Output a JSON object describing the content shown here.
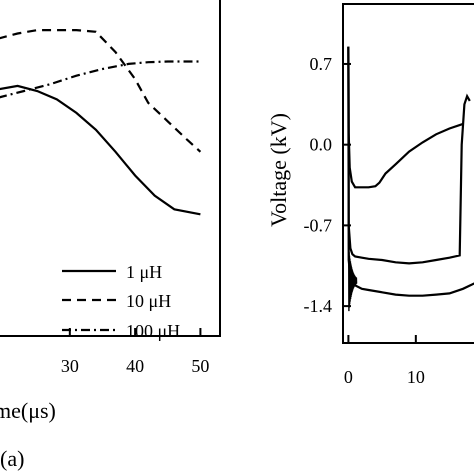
{
  "chart_data": [
    {
      "type": "line",
      "panel_label": "(a)",
      "xlabel": "me(μs)",
      "ylabel": "",
      "x_ticks": [
        "30",
        "40",
        "50"
      ],
      "x_tick_values": [
        30,
        40,
        50
      ],
      "xlim": [
        19,
        53
      ],
      "ylim": [
        0,
        1
      ],
      "y_ticks": [],
      "grid": false,
      "legend_position": "bottom-right",
      "series": [
        {
          "name": "1 μH",
          "style": "solid",
          "color": "#000000",
          "x": [
            19,
            22,
            25,
            28,
            31,
            34,
            37,
            40,
            43,
            46,
            50
          ],
          "y": [
            0.73,
            0.74,
            0.725,
            0.7,
            0.66,
            0.61,
            0.545,
            0.475,
            0.415,
            0.375,
            0.36
          ]
        },
        {
          "name": "10 μH",
          "style": "dashed",
          "color": "#000000",
          "x": [
            19,
            22,
            25,
            28,
            31,
            34,
            37,
            40,
            42,
            45,
            48,
            50
          ],
          "y": [
            0.88,
            0.895,
            0.905,
            0.905,
            0.905,
            0.9,
            0.84,
            0.76,
            0.69,
            0.635,
            0.58,
            0.545
          ]
        },
        {
          "name": "100 μH",
          "style": "dash-dot",
          "color": "#000000",
          "x": [
            19,
            23,
            27,
            31,
            35,
            39,
            42,
            45,
            48,
            50
          ],
          "y": [
            0.705,
            0.725,
            0.745,
            0.77,
            0.79,
            0.805,
            0.81,
            0.812,
            0.812,
            0.812
          ]
        }
      ]
    },
    {
      "type": "line",
      "panel_label": "",
      "xlabel": "",
      "ylabel": "Voltage (kV)",
      "x_ticks": [
        "0",
        "10"
      ],
      "x_tick_values": [
        0,
        10
      ],
      "y_ticks": [
        "0.7",
        "0.0",
        "-0.7",
        "-1.4"
      ],
      "y_tick_values": [
        0.7,
        0.0,
        -0.7,
        -1.4
      ],
      "xlim": [
        -0.8,
        21
      ],
      "ylim": [
        -1.72,
        1.22
      ],
      "grid": false,
      "series": [
        {
          "style": "solid",
          "color": "#000000",
          "x": [
            0,
            0.05,
            0.2,
            0.5,
            1,
            2,
            3,
            4,
            4.6,
            5.5,
            7,
            9,
            11,
            13,
            15,
            17
          ],
          "y": [
            0.85,
            0.1,
            -0.2,
            -0.32,
            -0.37,
            -0.37,
            -0.37,
            -0.36,
            -0.33,
            -0.25,
            -0.17,
            -0.06,
            0.02,
            0.09,
            0.14,
            0.18
          ]
        },
        {
          "style": "solid",
          "color": "#000000",
          "x": [
            0,
            0.05,
            0.3,
            0.6,
            1,
            2,
            3,
            5,
            7,
            9,
            11,
            13,
            15,
            16.5,
            16.8,
            17.2,
            17.6,
            18
          ],
          "y": [
            0.85,
            -0.7,
            -0.9,
            -0.95,
            -0.97,
            -0.98,
            -0.99,
            -1.0,
            -1.02,
            -1.03,
            -1.02,
            -1.0,
            -0.98,
            -0.96,
            0.0,
            0.35,
            0.42,
            0.38
          ]
        },
        {
          "style": "solid",
          "color": "#000000",
          "x": [
            0,
            0.05,
            0.3,
            0.6,
            1,
            2,
            3,
            5,
            7,
            9,
            11,
            13,
            15,
            17,
            18.8,
            19.2,
            19.5
          ],
          "y": [
            0.85,
            -1.0,
            -1.15,
            -1.2,
            -1.22,
            -1.25,
            -1.26,
            -1.28,
            -1.3,
            -1.31,
            -1.31,
            -1.3,
            -1.29,
            -1.25,
            -1.2,
            -0.6,
            0.3
          ]
        }
      ]
    }
  ]
}
